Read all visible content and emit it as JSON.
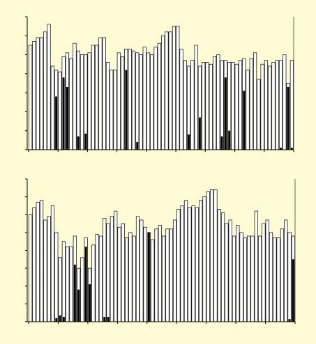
{
  "chart_data": [
    {
      "type": "bar",
      "series": [
        {
          "color": "#ffffff",
          "values": [
            5.5,
            5.7,
            5.9,
            5.9,
            6.2,
            6.6,
            4.4,
            4.2,
            4.1,
            4.9,
            5.1,
            4.8,
            5.6,
            5.2,
            5.0,
            5.0,
            5.1,
            5.5,
            5.5,
            5.9,
            5.9,
            4.6,
            4.2,
            4.2,
            5.1,
            4.9,
            5.3,
            5.3,
            5.2,
            5.1,
            5.0,
            5.4,
            5.1,
            5.0,
            5.4,
            5.6,
            6.0,
            6.2,
            6.2,
            6.5,
            6.5,
            5.3,
            4.7,
            4.4,
            4.7,
            5.5,
            4.4,
            4.6,
            4.6,
            4.5,
            4.9,
            5.0,
            4.7,
            4.7,
            4.6,
            4.6,
            4.5,
            4.7,
            4.8,
            4.2,
            4.8,
            5.1,
            3.7,
            4.5,
            4.7,
            4.4,
            4.6,
            4.7,
            4.7,
            5.0,
            3.5,
            4.7
          ]
        },
        {
          "color": "#000000",
          "values": [
            null,
            null,
            null,
            null,
            null,
            null,
            null,
            2.8,
            null,
            3.8,
            3.3,
            null,
            null,
            0.7,
            null,
            0.85,
            null,
            null,
            null,
            null,
            null,
            null,
            null,
            null,
            null,
            null,
            4.2,
            null,
            null,
            0.4,
            null,
            null,
            null,
            null,
            null,
            null,
            null,
            null,
            null,
            null,
            null,
            null,
            null,
            0.8,
            null,
            null,
            1.7,
            null,
            null,
            null,
            null,
            null,
            0.7,
            3.8,
            1.0,
            null,
            null,
            null,
            3.1,
            null,
            null,
            null,
            null,
            null,
            null,
            null,
            null,
            null,
            0.1,
            null,
            3.3,
            0.1
          ]
        }
      ],
      "ylim": [
        0,
        7
      ],
      "yticks": [
        0,
        1,
        2,
        3,
        4,
        5,
        6,
        7
      ]
    },
    {
      "type": "bar",
      "series": [
        {
          "color": "#ffffff",
          "values": [
            6.0,
            6.4,
            6.7,
            6.8,
            5.7,
            5.9,
            6.5,
            5.0,
            3.6,
            4.5,
            4.2,
            4.2,
            4.8,
            3.0,
            3.6,
            4.7,
            3.0,
            4.3,
            4.9,
            4.8,
            5.8,
            5.5,
            5.9,
            6.2,
            5.3,
            5.5,
            4.7,
            5.0,
            4.8,
            5.9,
            5.7,
            5.3,
            5.0,
            4.6,
            5.2,
            5.4,
            4.8,
            5.2,
            5.2,
            5.7,
            6.3,
            6.5,
            6.8,
            6.4,
            6.5,
            6.4,
            6.8,
            7.0,
            7.3,
            7.4,
            7.4,
            6.3,
            6.1,
            5.5,
            5.7,
            4.8,
            5.4,
            5.0,
            4.7,
            4.8,
            4.8,
            6.2,
            4.8,
            5.5,
            5.7,
            5.0,
            4.7,
            4.7,
            5.2,
            5.7,
            5.0,
            4.8
          ]
        },
        {
          "color": "#000000",
          "values": [
            null,
            null,
            null,
            null,
            null,
            null,
            null,
            0.2,
            0.35,
            0.27,
            null,
            null,
            3.2,
            1.8,
            null,
            4.2,
            2.1,
            null,
            null,
            null,
            0.27,
            0.27,
            null,
            null,
            null,
            null,
            null,
            null,
            null,
            null,
            null,
            null,
            5.0,
            null,
            null,
            null,
            null,
            null,
            null,
            null,
            null,
            null,
            null,
            null,
            null,
            null,
            null,
            null,
            null,
            null,
            null,
            null,
            null,
            null,
            null,
            null,
            null,
            null,
            null,
            null,
            null,
            null,
            null,
            null,
            null,
            null,
            null,
            null,
            null,
            null,
            0.15,
            3.5
          ]
        }
      ],
      "ylim": [
        0,
        8
      ],
      "yticks": [
        0,
        1,
        2,
        3,
        4,
        5,
        6,
        7,
        8
      ]
    }
  ]
}
